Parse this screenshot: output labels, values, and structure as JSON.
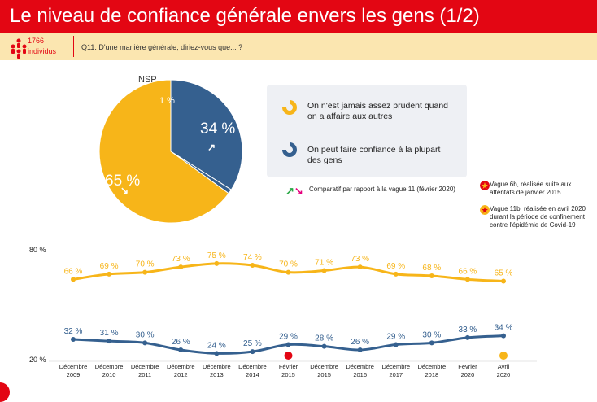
{
  "header": {
    "title": "Le niveau de confiance générale envers les gens (1/2)",
    "sample_count": "1766",
    "sample_unit": "individus",
    "question": "Q11. D'une manière générale, diriez-vous que... ?"
  },
  "colors": {
    "title_bg": "#e30613",
    "subheader_bg": "#fbe6b0",
    "prudent": "#f7b519",
    "confiance": "#35608f",
    "line_yellow": "#f7b519",
    "line_blue": "#35608f"
  },
  "pie": {
    "nsp_label": "NSP",
    "legend": [
      {
        "label": "On n'est jamais assez prudent quand on a affaire aux autres",
        "color": "#f7b519"
      },
      {
        "label": "On peut faire confiance à la plupart des gens",
        "color": "#35608f"
      }
    ]
  },
  "compare_note": "Comparatif par rapport à la vague 11 (février 2020)",
  "notes": [
    {
      "text_line1": "Vague 6b, réalisée suite aux",
      "text_line2": "attentats de janvier 2015",
      "color": "#e30613",
      "icon": "star-red-icon"
    },
    {
      "text_line1": "Vague 11b, réalisée en avril 2020",
      "text_line2": "durant la période de confinement",
      "text_line3": "contre l'épidémie de Covid-19",
      "color": "#f7b519",
      "icon": "star-yellow-icon"
    }
  ],
  "chart_data": [
    {
      "type": "pie",
      "slices": [
        {
          "name": "On n'est jamais assez prudent quand on a affaire aux autres",
          "value": 65,
          "label": "65 %",
          "color": "#f7b519"
        },
        {
          "name": "On peut faire confiance à la plupart des gens",
          "value": 34,
          "label": "34 %",
          "color": "#35608f"
        },
        {
          "name": "NSP",
          "value": 1,
          "label": "1 %",
          "color": "#35608f"
        }
      ],
      "trend_arrows": {
        "confiance": "up",
        "prudent": "down"
      }
    },
    {
      "type": "line",
      "categories": [
        "Décembre 2009",
        "Décembre 2010",
        "Décembre 2011",
        "Décembre 2012",
        "Décembre 2013",
        "Décembre 2014",
        "Février 2015",
        "Décembre 2015",
        "Décembre 2016",
        "Décembre 2017",
        "Décembre 2018",
        "Février 2020",
        "Avril 2020"
      ],
      "x_line1": [
        "Décembre",
        "Décembre",
        "Décembre",
        "Décembre",
        "Décembre",
        "Décembre",
        "Février",
        "Décembre",
        "Décembre",
        "Décembre",
        "Décembre",
        "Février",
        "Avril"
      ],
      "x_line2": [
        "2009",
        "2010",
        "2011",
        "2012",
        "2013",
        "2014",
        "2015",
        "2015",
        "2016",
        "2017",
        "2018",
        "2020",
        "2020"
      ],
      "series": [
        {
          "values": [
            66,
            69,
            70,
            73,
            75,
            74,
            70,
            71,
            73,
            69,
            68,
            66,
            65
          ],
          "labels": [
            "66 %",
            "69 %",
            "70 %",
            "73 %",
            "75 %",
            "74 %",
            "70 %",
            "71 %",
            "73 %",
            "69 %",
            "68 %",
            "66 %",
            "65 %"
          ],
          "color": "#f7b519"
        },
        {
          "values": [
            32,
            31,
            30,
            26,
            24,
            25,
            29,
            28,
            26,
            29,
            30,
            33,
            34
          ],
          "labels": [
            "32 %",
            "31 %",
            "30 %",
            "26 %",
            "24 %",
            "25 %",
            "29 %",
            "28 %",
            "26 %",
            "29 %",
            "30 %",
            "33 %",
            "34 %"
          ],
          "color": "#35608f"
        }
      ],
      "ylim": [
        20,
        80
      ],
      "yticks": [
        "80 %",
        "20 %"
      ],
      "markers": [
        {
          "category_index": 6,
          "icon": "star-red-icon",
          "color": "#e30613"
        },
        {
          "category_index": 12,
          "icon": "star-yellow-icon",
          "color": "#f7b519"
        }
      ]
    }
  ]
}
